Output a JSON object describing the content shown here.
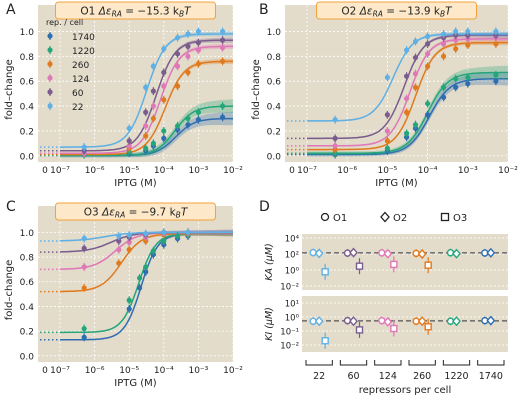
{
  "colors": {
    "bg": "#e3dccb",
    "grid": "#ffffff",
    "title_box": "#fde9c9",
    "title_border": "#f2a33a",
    "r1740": "#2f6db1",
    "r1220": "#24a57a",
    "r260": "#e07a1f",
    "r124": "#de78b7",
    "r60": "#7a5c8e",
    "r22": "#5eb0e5",
    "kline": "#555555"
  },
  "chart_data": [
    {
      "type": "line",
      "panel": "A",
      "title": "O1  ΔεRA = −15.3 kBT",
      "title_parts": {
        "op": "O1",
        "delta": "Δε",
        "sub": "RA",
        "eq": " = −15.3 k",
        "sub2": "B",
        "end": "T"
      },
      "xlabel": "IPTG (M)",
      "ylabel": "fold–change",
      "xscale": "log",
      "xlim": [
        1e-08,
        0.01
      ],
      "ylim": [
        -0.05,
        1.1
      ],
      "xticks": [
        "0",
        "10⁻⁷",
        "10⁻⁶",
        "10⁻⁵",
        "10⁻⁴",
        "10⁻³",
        "10⁻²"
      ],
      "yticks": [
        "0.0",
        "0.2",
        "0.4",
        "0.6",
        "0.8",
        "1.0"
      ],
      "legend": {
        "title": "rep. / cell",
        "entries": [
          "1740",
          "1220",
          "260",
          "124",
          "60",
          "22"
        ],
        "placement": "upper-left"
      },
      "curve_keys": [
        "r1740",
        "r1220",
        "r260",
        "r124",
        "r60",
        "r22"
      ],
      "series": [
        {
          "name": "1740",
          "leak": 0.002,
          "sat": 0.3,
          "ec50": 0.00022,
          "n": 1.6
        },
        {
          "name": "1220",
          "leak": 0.003,
          "sat": 0.4,
          "ec50": 0.00021,
          "n": 1.6
        },
        {
          "name": "260",
          "leak": 0.01,
          "sat": 0.76,
          "ec50": 0.00011,
          "n": 1.6
        },
        {
          "name": "124",
          "leak": 0.02,
          "sat": 0.88,
          "ec50": 8e-05,
          "n": 1.6
        },
        {
          "name": "60",
          "leak": 0.04,
          "sat": 0.93,
          "ec50": 6e-05,
          "n": 1.6
        },
        {
          "name": "22",
          "leak": 0.07,
          "sat": 0.98,
          "ec50": 3.2e-05,
          "n": 1.6
        }
      ],
      "points": [
        {
          "key": "r1740",
          "pts": [
            [
              5e-07,
              0.01
            ],
            [
              1e-05,
              0.02
            ],
            [
              3e-05,
              0.04
            ],
            [
              5e-05,
              0.08
            ],
            [
              0.0001,
              0.14
            ],
            [
              0.00025,
              0.21
            ],
            [
              0.0005,
              0.25
            ],
            [
              0.001,
              0.29
            ],
            [
              0.005,
              0.31
            ]
          ]
        },
        {
          "key": "r1220",
          "pts": [
            [
              5e-07,
              0.01
            ],
            [
              1e-05,
              0.03
            ],
            [
              3e-05,
              0.06
            ],
            [
              5e-05,
              0.1
            ],
            [
              0.0001,
              0.2
            ],
            [
              0.00025,
              0.24
            ],
            [
              0.0005,
              0.3
            ],
            [
              0.001,
              0.35
            ],
            [
              0.005,
              0.4
            ]
          ]
        },
        {
          "key": "r260",
          "pts": [
            [
              5e-07,
              0.02
            ],
            [
              1e-05,
              0.06
            ],
            [
              3e-05,
              0.16
            ],
            [
              5e-05,
              0.3
            ],
            [
              0.0001,
              0.45
            ],
            [
              0.00025,
              0.56
            ],
            [
              0.0005,
              0.67
            ],
            [
              0.001,
              0.74
            ],
            [
              0.005,
              0.76
            ]
          ]
        },
        {
          "key": "r124",
          "pts": [
            [
              5e-07,
              0.02
            ],
            [
              1e-05,
              0.08
            ],
            [
              3e-05,
              0.24
            ],
            [
              5e-05,
              0.4
            ],
            [
              0.0001,
              0.56
            ],
            [
              0.00025,
              0.72
            ],
            [
              0.0005,
              0.8
            ],
            [
              0.001,
              0.85
            ],
            [
              0.005,
              0.87
            ]
          ]
        },
        {
          "key": "r60",
          "pts": [
            [
              5e-07,
              0.04
            ],
            [
              1e-05,
              0.12
            ],
            [
              3e-05,
              0.35
            ],
            [
              5e-05,
              0.52
            ],
            [
              0.0001,
              0.67
            ],
            [
              0.00025,
              0.82
            ],
            [
              0.0005,
              0.88
            ],
            [
              0.001,
              0.91
            ],
            [
              0.005,
              0.93
            ]
          ]
        },
        {
          "key": "r22",
          "pts": [
            [
              5e-07,
              0.07
            ],
            [
              1e-05,
              0.22
            ],
            [
              3e-05,
              0.55
            ],
            [
              5e-05,
              0.72
            ],
            [
              0.0001,
              0.86
            ],
            [
              0.00025,
              0.95
            ],
            [
              0.0005,
              0.98
            ],
            [
              0.001,
              1.0
            ],
            [
              0.005,
              1.0
            ]
          ]
        }
      ]
    },
    {
      "type": "line",
      "panel": "B",
      "title_parts": {
        "op": "O2",
        "delta": "Δε",
        "sub": "RA",
        "eq": " = −13.9 k",
        "sub2": "B",
        "end": "T"
      },
      "xlabel": "IPTG (M)",
      "ylabel": "fold–change",
      "xscale": "log",
      "xlim": [
        1e-08,
        0.01
      ],
      "ylim": [
        -0.05,
        1.1
      ],
      "xticks": [
        "0",
        "10⁻⁷",
        "10⁻⁶",
        "10⁻⁵",
        "10⁻⁴",
        "10⁻³",
        "10⁻²"
      ],
      "yticks": [
        "0.0",
        "0.2",
        "0.4",
        "0.6",
        "0.8",
        "1.0"
      ],
      "curve_keys": [
        "r1740",
        "r1220",
        "r260",
        "r124",
        "r60",
        "r22"
      ],
      "series": [
        {
          "name": "1740",
          "leak": 0.01,
          "sat": 0.62,
          "ec50": 0.00011,
          "n": 1.7
        },
        {
          "name": "1220",
          "leak": 0.02,
          "sat": 0.67,
          "ec50": 0.0001,
          "n": 1.7
        },
        {
          "name": "260",
          "leak": 0.05,
          "sat": 0.91,
          "ec50": 5e-05,
          "n": 1.8
        },
        {
          "name": "124",
          "leak": 0.08,
          "sat": 0.94,
          "ec50": 3.6e-05,
          "n": 1.8
        },
        {
          "name": "60",
          "leak": 0.14,
          "sat": 0.97,
          "ec50": 2.6e-05,
          "n": 1.8
        },
        {
          "name": "22",
          "leak": 0.28,
          "sat": 0.98,
          "ec50": 1.4e-05,
          "n": 1.8
        }
      ],
      "points": [
        {
          "key": "r1740",
          "pts": [
            [
              5e-07,
              0.01
            ],
            [
              1e-05,
              0.04
            ],
            [
              3e-05,
              0.15
            ],
            [
              5e-05,
              0.22
            ],
            [
              0.0001,
              0.33
            ],
            [
              0.00025,
              0.47
            ],
            [
              0.0005,
              0.55
            ],
            [
              0.001,
              0.58
            ],
            [
              0.005,
              0.6
            ]
          ]
        },
        {
          "key": "r1220",
          "pts": [
            [
              5e-07,
              0.02
            ],
            [
              1e-05,
              0.06
            ],
            [
              3e-05,
              0.18
            ],
            [
              5e-05,
              0.25
            ],
            [
              0.0001,
              0.42
            ],
            [
              0.00025,
              0.55
            ],
            [
              0.0005,
              0.62
            ],
            [
              0.001,
              0.63
            ],
            [
              0.005,
              0.65
            ]
          ]
        },
        {
          "key": "r260",
          "pts": [
            [
              5e-07,
              0.05
            ],
            [
              1e-05,
              0.12
            ],
            [
              3e-05,
              0.35
            ],
            [
              5e-05,
              0.55
            ],
            [
              0.0001,
              0.72
            ],
            [
              0.00025,
              0.8
            ],
            [
              0.0005,
              0.86
            ],
            [
              0.001,
              0.89
            ],
            [
              0.005,
              0.9
            ]
          ]
        },
        {
          "key": "r124",
          "pts": [
            [
              5e-07,
              0.08
            ],
            [
              1e-05,
              0.2
            ],
            [
              3e-05,
              0.46
            ],
            [
              5e-05,
              0.66
            ],
            [
              0.0001,
              0.82
            ],
            [
              0.00025,
              0.9
            ],
            [
              0.0005,
              0.93
            ],
            [
              0.001,
              0.94
            ],
            [
              0.005,
              0.95
            ]
          ]
        },
        {
          "key": "r60",
          "pts": [
            [
              5e-07,
              0.14
            ],
            [
              1e-05,
              0.33
            ],
            [
              3e-05,
              0.64
            ],
            [
              5e-05,
              0.79
            ],
            [
              0.0001,
              0.9
            ],
            [
              0.00025,
              0.95
            ],
            [
              0.0005,
              0.97
            ],
            [
              0.001,
              0.97
            ],
            [
              0.005,
              0.97
            ]
          ]
        },
        {
          "key": "r22",
          "pts": [
            [
              5e-07,
              0.29
            ],
            [
              1e-05,
              0.63
            ],
            [
              3e-05,
              0.85
            ],
            [
              5e-05,
              0.92
            ],
            [
              0.0001,
              0.96
            ],
            [
              0.00025,
              0.98
            ],
            [
              0.0005,
              1.0
            ],
            [
              0.001,
              1.0
            ],
            [
              0.005,
              1.0
            ]
          ]
        }
      ]
    },
    {
      "type": "line",
      "panel": "C",
      "title_parts": {
        "op": "O3",
        "delta": "Δε",
        "sub": "RA",
        "eq": " = −9.7 k",
        "sub2": "B",
        "end": "T"
      },
      "xlabel": "IPTG (M)",
      "ylabel": "fold–change",
      "xscale": "log",
      "xlim": [
        1e-08,
        0.01
      ],
      "ylim": [
        -0.05,
        1.1
      ],
      "xticks": [
        "0",
        "10⁻⁷",
        "10⁻⁶",
        "10⁻⁵",
        "10⁻⁴",
        "10⁻³",
        "10⁻²"
      ],
      "yticks": [
        "0.0",
        "0.2",
        "0.4",
        "0.6",
        "0.8",
        "1.0"
      ],
      "curve_keys": [
        "r1740",
        "r1220",
        "r260",
        "r124",
        "r60",
        "r22"
      ],
      "series": [
        {
          "name": "1740",
          "leak": 0.13,
          "sat": 0.99,
          "ec50": 2.2e-05,
          "n": 1.8
        },
        {
          "name": "1220",
          "leak": 0.19,
          "sat": 0.99,
          "ec50": 1.9e-05,
          "n": 1.8
        },
        {
          "name": "260",
          "leak": 0.52,
          "sat": 0.99,
          "ec50": 6e-06,
          "n": 1.5
        },
        {
          "name": "124",
          "leak": 0.7,
          "sat": 1.0,
          "ec50": 4e-06,
          "n": 1.4
        },
        {
          "name": "60",
          "leak": 0.84,
          "sat": 1.0,
          "ec50": 3e-06,
          "n": 1.3
        },
        {
          "name": "22",
          "leak": 0.93,
          "sat": 1.0,
          "ec50": 2e-06,
          "n": 1.2
        }
      ],
      "points": [
        {
          "key": "r1740",
          "pts": [
            [
              5e-07,
              0.15
            ],
            [
              1e-05,
              0.38
            ],
            [
              2e-05,
              0.55
            ],
            [
              3e-05,
              0.68
            ],
            [
              5e-05,
              0.82
            ],
            [
              0.0001,
              0.9
            ],
            [
              0.00025,
              0.95
            ],
            [
              0.0005,
              0.97
            ]
          ]
        },
        {
          "key": "r1220",
          "pts": [
            [
              5e-07,
              0.22
            ],
            [
              1e-05,
              0.45
            ],
            [
              2e-05,
              0.63
            ],
            [
              3e-05,
              0.72
            ],
            [
              5e-05,
              0.85
            ],
            [
              0.0001,
              0.93
            ],
            [
              0.00025,
              0.97
            ],
            [
              0.0005,
              0.98
            ]
          ]
        },
        {
          "key": "r260",
          "pts": [
            [
              5e-07,
              0.55
            ],
            [
              5e-06,
              0.75
            ],
            [
              1e-05,
              0.86
            ],
            [
              3e-05,
              0.93
            ],
            [
              0.0001,
              0.98
            ],
            [
              0.0005,
              0.99
            ]
          ]
        },
        {
          "key": "r124",
          "pts": [
            [
              5e-07,
              0.72
            ],
            [
              5e-06,
              0.86
            ],
            [
              1e-05,
              0.92
            ],
            [
              3e-05,
              0.96
            ],
            [
              0.0001,
              0.99
            ],
            [
              0.0005,
              1.0
            ]
          ]
        },
        {
          "key": "r60",
          "pts": [
            [
              5e-07,
              0.87
            ],
            [
              5e-06,
              0.93
            ],
            [
              1e-05,
              0.96
            ],
            [
              3e-05,
              0.98
            ],
            [
              0.0001,
              1.0
            ],
            [
              0.0005,
              1.0
            ]
          ]
        },
        {
          "key": "r22",
          "pts": [
            [
              5e-07,
              0.95
            ],
            [
              5e-06,
              0.97
            ],
            [
              1e-05,
              0.98
            ],
            [
              3e-05,
              0.99
            ],
            [
              0.0001,
              1.0
            ],
            [
              0.0005,
              1.0
            ]
          ]
        }
      ]
    },
    {
      "type": "scatter",
      "panel": "D",
      "legend": {
        "entries": [
          "O1",
          "O2",
          "O3"
        ],
        "markers": [
          "circle",
          "diamond",
          "square"
        ],
        "placement": "top"
      },
      "xlabel": "repressors per cell",
      "categories": [
        "22",
        "60",
        "124",
        "260",
        "1220",
        "1740"
      ],
      "category_keys": [
        "r22",
        "r60",
        "r124",
        "r260",
        "r1220",
        "r1740"
      ],
      "global_KA": 139,
      "global_KI": 0.53,
      "top": {
        "ylabel": "KA (μM)",
        "yticks": [
          "10⁴",
          "10²",
          "10⁰",
          "10⁻²"
        ],
        "ylim_log10": [
          -2.5,
          4.5
        ],
        "values": {
          "O1": [
            150,
            130,
            140,
            120,
            145,
            135
          ],
          "O2": [
            120,
            150,
            110,
            100,
            110,
            140
          ],
          "O3": [
            0.6,
            3.0,
            5.0,
            4.0,
            null,
            null
          ]
        }
      },
      "bottom": {
        "ylabel": "KI (μM)",
        "yticks": [
          "10¹",
          "10⁰",
          "10⁻¹",
          "10⁻²"
        ],
        "ylim_log10": [
          -2.5,
          1.5
        ],
        "values": {
          "O1": [
            0.5,
            0.55,
            0.55,
            0.5,
            0.5,
            0.55
          ],
          "O2": [
            0.5,
            0.5,
            0.45,
            0.5,
            0.5,
            0.55
          ],
          "O3": [
            0.02,
            0.12,
            0.15,
            0.2,
            null,
            null
          ]
        }
      }
    }
  ],
  "panel_letters": [
    "A",
    "B",
    "C",
    "D"
  ]
}
